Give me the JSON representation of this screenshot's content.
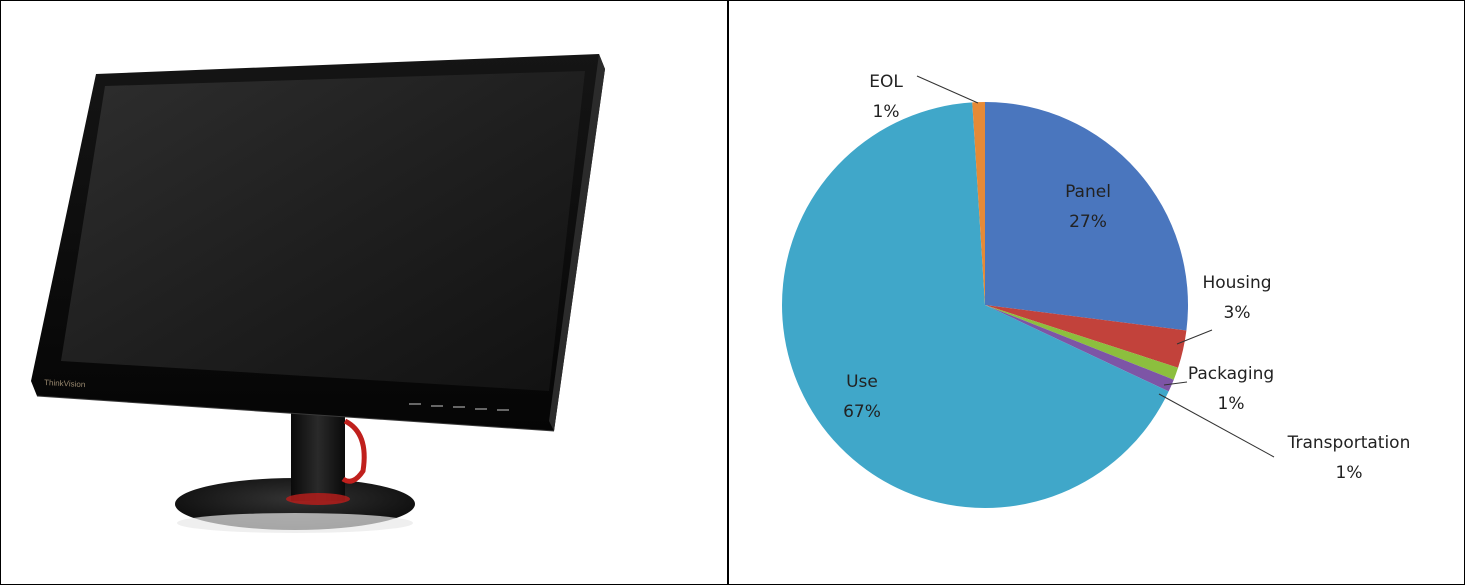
{
  "left_panel": {
    "brand_text": "ThinkVision"
  },
  "chart_data": {
    "type": "pie",
    "title": "",
    "slices": [
      {
        "label": "Panel",
        "value": 27,
        "pct_label": "27%",
        "color": "#4a76be"
      },
      {
        "label": "Housing",
        "value": 3,
        "pct_label": "3%",
        "color": "#c2423b"
      },
      {
        "label": "Packaging",
        "value": 1,
        "pct_label": "1%",
        "color": "#8cbf3e"
      },
      {
        "label": "Transportation",
        "value": 1,
        "pct_label": "1%",
        "color": "#7d55a6"
      },
      {
        "label": "Use",
        "value": 67,
        "pct_label": "67%",
        "color": "#40a7c9"
      },
      {
        "label": "EOL",
        "value": 1,
        "pct_label": "1%",
        "color": "#e68a36"
      }
    ],
    "legend": "none"
  }
}
